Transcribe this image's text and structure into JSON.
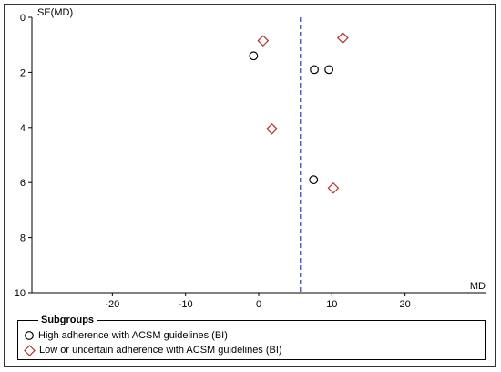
{
  "chart_data": {
    "type": "scatter",
    "title": "",
    "xlabel": "MD",
    "ylabel": "SE(MD)",
    "xlim": [
      -31,
      31
    ],
    "ylim": [
      0,
      10
    ],
    "y_inverted": true,
    "xticks": [
      -20,
      -10,
      0,
      10,
      20
    ],
    "yticks": [
      0,
      2,
      4,
      6,
      8,
      10
    ],
    "grid": false,
    "reference_line": {
      "x": 5.7,
      "style": "dashed",
      "color": "#2b3dbf"
    },
    "legend": {
      "title": "Subgroups",
      "placement": "bottom",
      "entries": [
        "High adherence with ACSM guidelines (BI)",
        "Low or uncertain adherence with ACSM guidelines (BI)"
      ]
    },
    "series": [
      {
        "name": "High adherence with ACSM guidelines (BI)",
        "marker": "circle",
        "color": "#000000",
        "points": [
          {
            "x": -0.7,
            "y": 1.4
          },
          {
            "x": 7.6,
            "y": 1.9
          },
          {
            "x": 9.6,
            "y": 1.9
          },
          {
            "x": 7.5,
            "y": 5.9
          }
        ]
      },
      {
        "name": "Low or uncertain adherence with ACSM guidelines (BI)",
        "marker": "diamond",
        "color": "#b03030",
        "points": [
          {
            "x": 0.6,
            "y": 0.85
          },
          {
            "x": 11.5,
            "y": 0.75
          },
          {
            "x": 1.8,
            "y": 4.05
          },
          {
            "x": 10.2,
            "y": 6.2
          }
        ]
      }
    ]
  }
}
